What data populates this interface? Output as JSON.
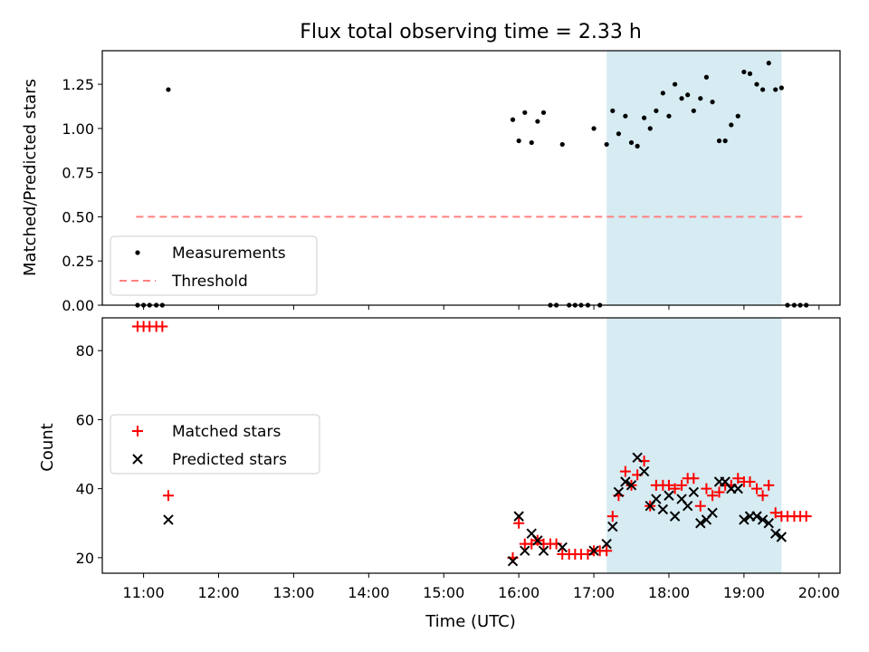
{
  "title": "Flux total observing time = 2.33 h",
  "xlabel": "Time (UTC)",
  "colors": {
    "shade": "#add8e6",
    "threshold": "#ff8080",
    "matched": "#ff0000",
    "predicted": "#000000",
    "measurements": "#000000"
  },
  "chart_data": [
    {
      "type": "scatter",
      "ylabel": "Matched/Predicted stars",
      "xlim": [
        10.45,
        20.28
      ],
      "ylim": [
        0,
        1.44
      ],
      "yticks": [
        "0.00",
        "0.25",
        "0.50",
        "0.75",
        "1.00",
        "1.25"
      ],
      "ytick_values": [
        0,
        0.25,
        0.5,
        0.75,
        1.0,
        1.25
      ],
      "xticks": [
        "11:00",
        "12:00",
        "13:00",
        "14:00",
        "15:00",
        "16:00",
        "17:00",
        "18:00",
        "19:00",
        "20:00"
      ],
      "shaded_x": [
        17.17,
        19.5
      ],
      "legend": {
        "placement": "lower-left",
        "entries": [
          "Measurements",
          "Threshold"
        ]
      },
      "threshold": {
        "name": "Threshold",
        "y": 0.5,
        "x": [
          10.9,
          19.83
        ]
      },
      "series": [
        {
          "name": "Measurements",
          "x": [
            10.92,
            11.0,
            11.08,
            11.17,
            11.25,
            11.33,
            15.92,
            16.0,
            16.08,
            16.17,
            16.25,
            16.33,
            16.42,
            16.5,
            16.58,
            16.67,
            16.75,
            16.83,
            16.92,
            17.0,
            17.08,
            17.17,
            17.25,
            17.33,
            17.42,
            17.5,
            17.58,
            17.67,
            17.75,
            17.83,
            17.92,
            18.0,
            18.08,
            18.17,
            18.25,
            18.33,
            18.42,
            18.5,
            18.58,
            18.67,
            18.75,
            18.83,
            18.92,
            19.0,
            19.08,
            19.17,
            19.25,
            19.33,
            19.42,
            19.5,
            19.58,
            19.67,
            19.75,
            19.83
          ],
          "y": [
            0,
            0,
            0,
            0,
            0,
            1.22,
            1.05,
            0.93,
            1.09,
            0.92,
            1.04,
            1.09,
            0,
            0,
            0.91,
            0,
            0,
            0,
            0,
            1.0,
            0,
            0.91,
            1.1,
            0.97,
            1.07,
            0.92,
            0.9,
            1.06,
            1.0,
            1.1,
            1.2,
            1.07,
            1.25,
            1.17,
            1.19,
            1.1,
            1.17,
            1.29,
            1.15,
            0.93,
            0.93,
            1.02,
            1.07,
            1.32,
            1.31,
            1.25,
            1.22,
            1.37,
            1.22,
            1.23,
            0,
            0,
            0,
            0
          ]
        }
      ]
    },
    {
      "type": "scatter",
      "ylabel": "Count",
      "xlim": [
        10.45,
        20.28
      ],
      "ylim": [
        15.5,
        89.5
      ],
      "yticks": [
        "20",
        "40",
        "60",
        "80"
      ],
      "ytick_values": [
        20,
        40,
        60,
        80
      ],
      "xticks": [
        "11:00",
        "12:00",
        "13:00",
        "14:00",
        "15:00",
        "16:00",
        "17:00",
        "18:00",
        "19:00",
        "20:00"
      ],
      "shaded_x": [
        17.17,
        19.5
      ],
      "legend": {
        "placement": "center-left",
        "entries": [
          "Matched stars",
          "Predicted stars"
        ]
      },
      "series": [
        {
          "name": "Matched stars",
          "marker": "+",
          "x": [
            10.92,
            11.0,
            11.08,
            11.17,
            11.25,
            11.33,
            15.92,
            16.0,
            16.08,
            16.17,
            16.25,
            16.33,
            16.42,
            16.5,
            16.58,
            16.67,
            16.75,
            16.83,
            16.92,
            17.0,
            17.08,
            17.17,
            17.25,
            17.33,
            17.42,
            17.5,
            17.58,
            17.67,
            17.75,
            17.83,
            17.92,
            18.0,
            18.08,
            18.17,
            18.25,
            18.33,
            18.42,
            18.5,
            18.58,
            18.67,
            18.75,
            18.83,
            18.92,
            19.0,
            19.08,
            19.17,
            19.25,
            19.33,
            19.42,
            19.5,
            19.58,
            19.67,
            19.75,
            19.83
          ],
          "y": [
            87,
            87,
            87,
            87,
            87,
            38,
            20,
            30,
            24,
            24,
            25,
            24,
            24,
            24,
            21,
            21,
            21,
            21,
            21,
            22,
            22,
            22,
            32,
            38,
            45,
            41,
            44,
            48,
            35,
            41,
            41,
            41,
            40,
            41,
            43,
            43,
            35,
            40,
            38,
            39,
            41,
            41,
            43,
            42,
            42,
            40,
            38,
            41,
            33,
            32,
            32,
            32,
            32,
            32
          ]
        },
        {
          "name": "Predicted stars",
          "marker": "x",
          "x": [
            11.33,
            15.92,
            16.0,
            16.08,
            16.17,
            16.25,
            16.33,
            16.58,
            17.0,
            17.17,
            17.25,
            17.33,
            17.42,
            17.5,
            17.58,
            17.67,
            17.75,
            17.83,
            17.92,
            18.0,
            18.08,
            18.17,
            18.25,
            18.33,
            18.42,
            18.5,
            18.58,
            18.67,
            18.75,
            18.83,
            18.92,
            19.0,
            19.08,
            19.17,
            19.25,
            19.33,
            19.42,
            19.5
          ],
          "y": [
            31,
            19,
            32,
            22,
            27,
            25,
            22,
            23,
            22,
            24,
            29,
            39,
            42,
            41,
            49,
            45,
            35,
            37,
            34,
            38,
            32,
            37,
            35,
            39,
            30,
            31,
            33,
            42,
            42,
            40,
            40,
            31,
            32,
            32,
            31,
            30,
            27,
            26
          ]
        }
      ]
    }
  ]
}
